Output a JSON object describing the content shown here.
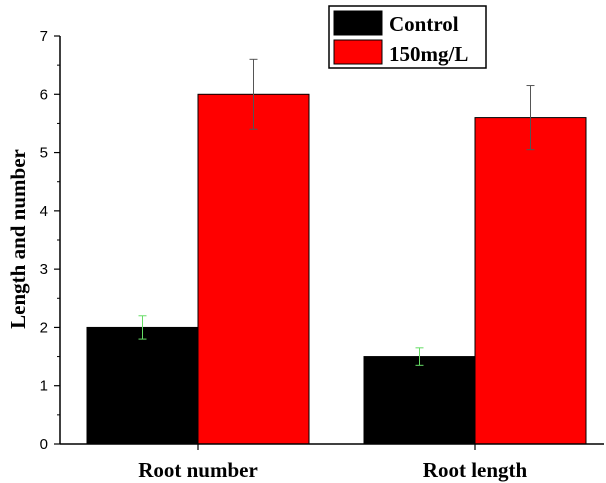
{
  "chart_data": {
    "type": "bar",
    "title": "",
    "xlabel": "",
    "ylabel": "Length and number",
    "categories": [
      "Root number",
      "Root length"
    ],
    "ylim": [
      0,
      7
    ],
    "yticks": [
      0,
      1,
      2,
      3,
      4,
      5,
      6,
      7
    ],
    "grid": false,
    "legend_position": "top-right",
    "series": [
      {
        "name": "Control",
        "color": "#000000",
        "error_color": "#66dd66",
        "values": [
          2.0,
          1.5
        ],
        "errors": [
          0.2,
          0.15
        ]
      },
      {
        "name": "150mg/L",
        "color": "#ff0000",
        "error_color": "#555555",
        "values": [
          6.0,
          5.6
        ],
        "errors": [
          0.6,
          0.55
        ]
      }
    ]
  }
}
